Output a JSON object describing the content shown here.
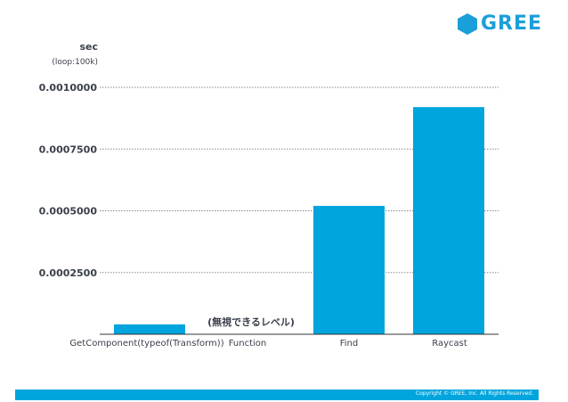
{
  "brand": {
    "name": "GREE",
    "color": "#1a9fd9",
    "icon": "hexagon-logo-icon"
  },
  "footer": {
    "copyright": "Copyright © GREE, Inc. All Rights Reserved.",
    "color": "#00a5dd"
  },
  "chart_data": {
    "type": "bar",
    "ylabel": "sec",
    "ylabel_sub": "(loop:100k)",
    "categories": [
      "GetComponent(typeof(Transform))",
      "Function",
      "Find",
      "Raycast"
    ],
    "values": [
      4e-05,
      0.0,
      0.00052,
      0.00092
    ],
    "ylim": [
      0,
      0.001
    ],
    "yticks": [
      "0.0002500",
      "0.0005000",
      "0.0007500",
      "0.0010000"
    ],
    "ytick_values": [
      0.00025,
      0.0005,
      0.00075,
      0.001
    ],
    "grid": true,
    "bar_color": "#00a5dd",
    "annotation": "(無視できるレベル)"
  }
}
